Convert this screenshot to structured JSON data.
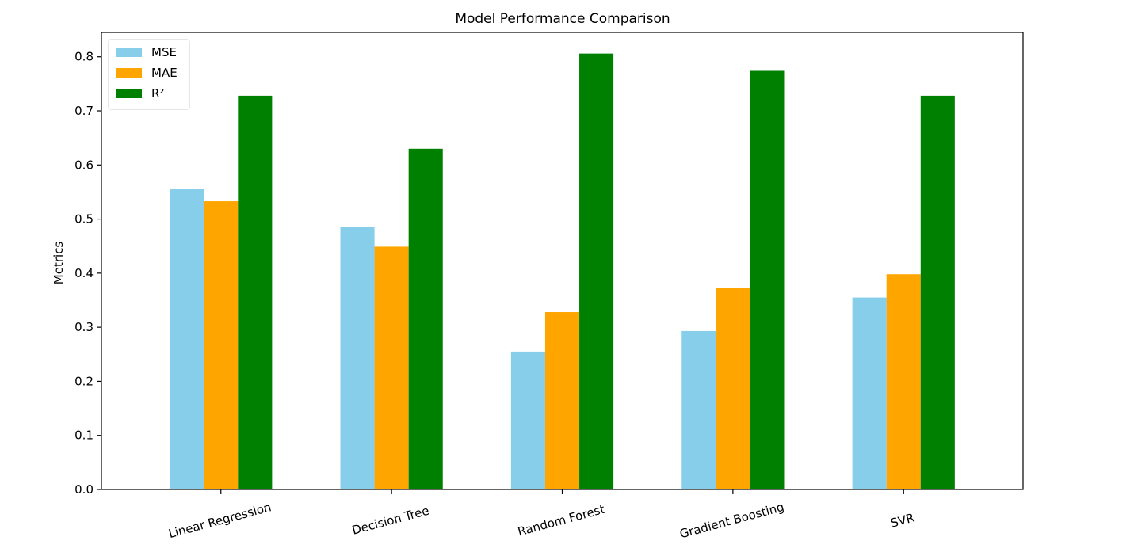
{
  "chart_data": {
    "type": "bar",
    "title": "Model Performance Comparison",
    "xlabel": "",
    "ylabel": "Metrics",
    "categories": [
      "Linear Regression",
      "Decision Tree",
      "Random Forest",
      "Gradient Boosting",
      "SVR"
    ],
    "series": [
      {
        "name": "MSE",
        "color": "#87ceeb",
        "values": [
          0.555,
          0.485,
          0.255,
          0.293,
          0.355
        ]
      },
      {
        "name": "MAE",
        "color": "#ffa500",
        "values": [
          0.533,
          0.449,
          0.328,
          0.372,
          0.398
        ]
      },
      {
        "name": "R²",
        "color": "#008000",
        "values": [
          0.728,
          0.63,
          0.806,
          0.774,
          0.728
        ]
      }
    ],
    "ylim": [
      0,
      0.845
    ],
    "yticks": [
      0.0,
      0.1,
      0.2,
      0.3,
      0.4,
      0.5,
      0.6,
      0.7,
      0.8
    ],
    "ytick_labels": [
      "0.0",
      "0.1",
      "0.2",
      "0.3",
      "0.4",
      "0.5",
      "0.6",
      "0.7",
      "0.8"
    ],
    "xtick_rotation_deg": 15,
    "grid": false,
    "legend_position": "upper-left"
  }
}
